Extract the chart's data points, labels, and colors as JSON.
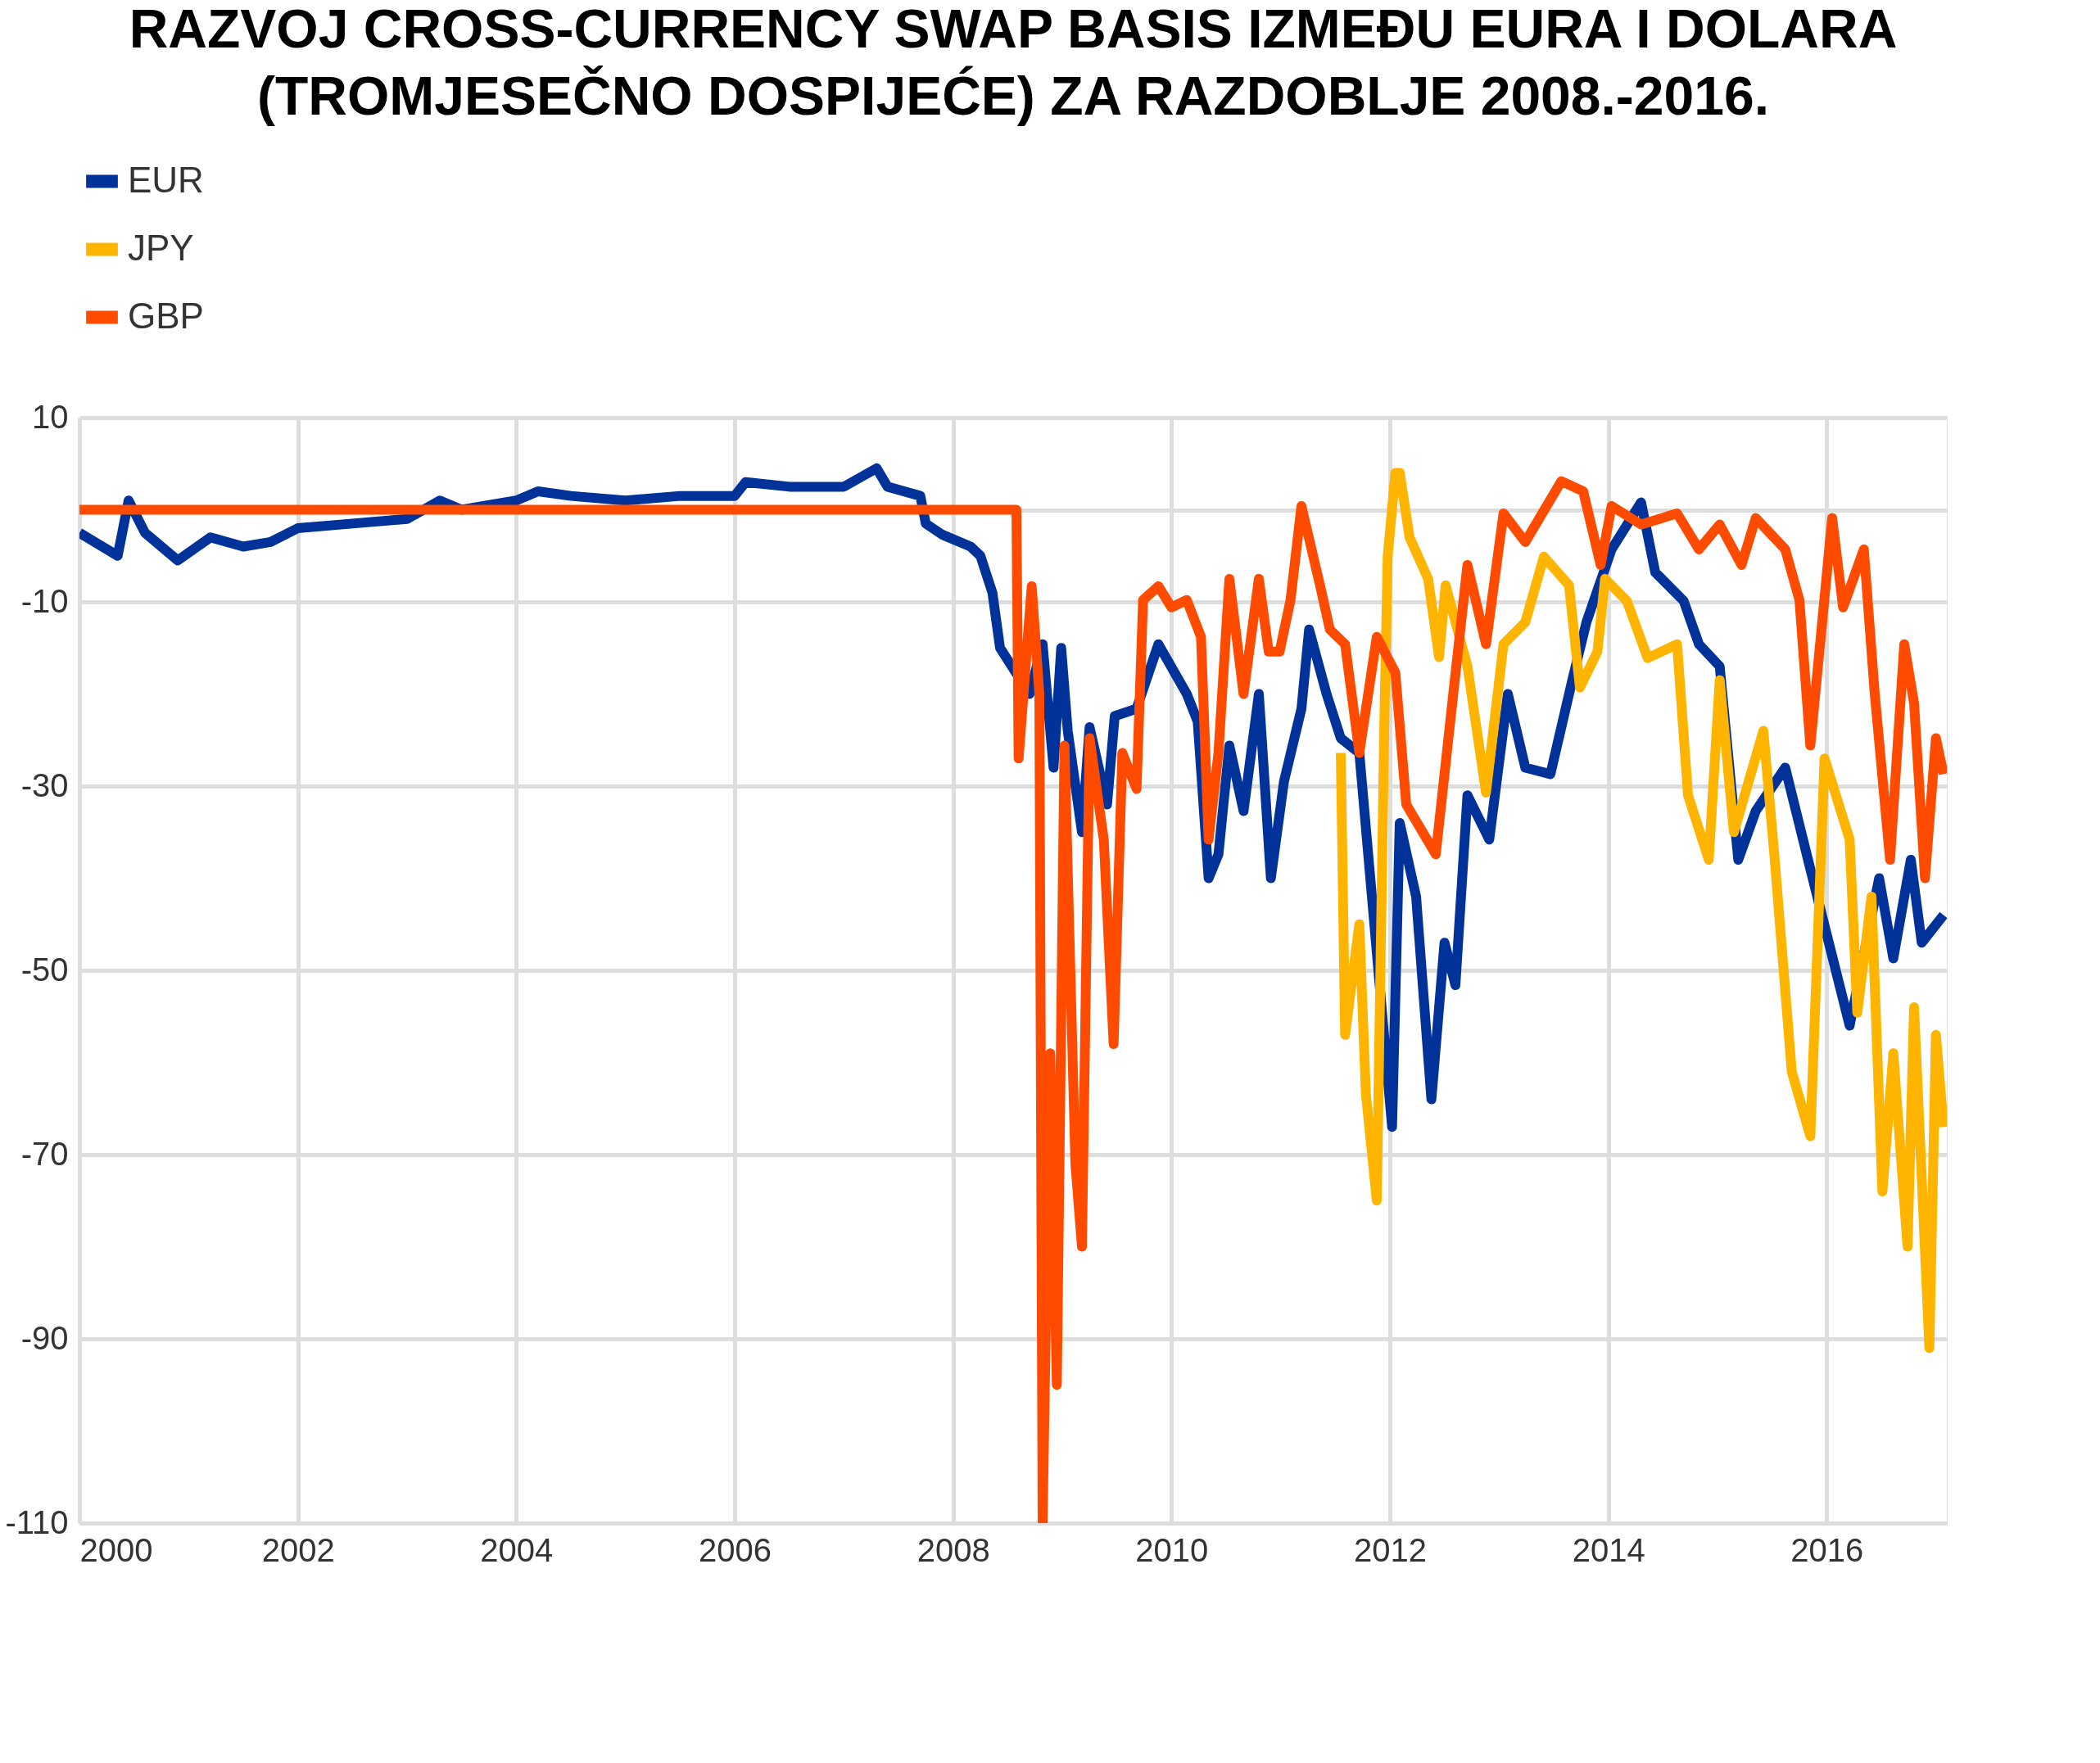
{
  "chart_data": {
    "type": "line",
    "title": "RAZVOJ CROSS-CURRENCY SWAP BASIS IZMEĐU EURA I DOLARA (TROMJESEČNO DOSPIJEĆE) ZA RAZDOBLJE 2008.-2016.",
    "xlim": [
      2000,
      2017.1
    ],
    "xticks": [
      2000,
      2002,
      2004,
      2006,
      2008,
      2010,
      2012,
      2014,
      2016
    ],
    "ylim": [
      -110,
      10
    ],
    "yticks": [
      10,
      {
        "value": 0,
        "label": null
      },
      -10,
      -30,
      -50,
      -70,
      -90,
      -110
    ],
    "grid": true,
    "legend": "top left",
    "line_style": "solid",
    "marker": "none",
    "series": [
      {
        "name": "EUR",
        "color": "#003299",
        "x": [
          2000,
          2000.35,
          2000.45,
          2000.6,
          2000.9,
          2001.2,
          2001.5,
          2001.75,
          2002.0,
          2002.5,
          2003.0,
          2003.3,
          2003.5,
          2004.0,
          2004.2,
          2004.5,
          2005.0,
          2005.5,
          2006.0,
          2006.1,
          2006.5,
          2007.0,
          2007.3,
          2007.4,
          2007.7,
          2007.75,
          2007.9,
          2008.16,
          2008.25,
          2008.36,
          2008.43,
          2008.7,
          2008.82,
          2008.92,
          2008.99,
          2009.05,
          2009.18,
          2009.25,
          2009.41,
          2009.48,
          2009.68,
          2009.88,
          2010.14,
          2010.24,
          2010.34,
          2010.43,
          2010.53,
          2010.66,
          2010.8,
          2010.91,
          2011.03,
          2011.19,
          2011.26,
          2011.42,
          2011.55,
          2011.72,
          2012.02,
          2012.09,
          2012.24,
          2012.38,
          2012.5,
          2012.6,
          2012.71,
          2012.91,
          2013.08,
          2013.24,
          2013.47,
          2013.67,
          2013.8,
          2014.03,
          2014.3,
          2014.43,
          2014.69,
          2014.83,
          2015.02,
          2015.19,
          2015.35,
          2015.62,
          2015.85,
          2016.21,
          2016.48,
          2016.61,
          2016.77,
          2016.87,
          2017.07
        ],
        "values": [
          -2.5,
          -5,
          1,
          -2.5,
          -5.5,
          -3,
          -4,
          -3.5,
          -2,
          -1.5,
          -1,
          1,
          0,
          1,
          2,
          1.5,
          1,
          1.5,
          1.5,
          3,
          2.5,
          2.5,
          4.5,
          2.5,
          1.5,
          -1.5,
          -2.7,
          -4,
          -5,
          -9,
          -15,
          -20,
          -14.6,
          -28,
          -15,
          -24,
          -35,
          -23.6,
          -32,
          -22.4,
          -21.6,
          -14.6,
          -20,
          -23,
          -40,
          -37.4,
          -25.6,
          -32.7,
          -20,
          -40,
          -29.5,
          -21.6,
          -13,
          -20,
          -24.8,
          -26.4,
          -67,
          -34,
          -42,
          -64,
          -47,
          -51.6,
          -31,
          -35.8,
          -20,
          -28,
          -28.7,
          -18.5,
          -12.2,
          -4.3,
          0.8,
          -6.8,
          -9.9,
          -14.6,
          -17,
          -38,
          -32.7,
          -28,
          -39,
          -56,
          -40,
          -48.7,
          -38,
          -47,
          -44
        ]
      },
      {
        "name": "JPY",
        "color": "#ffb400",
        "x": [
          2011.55,
          2011.59,
          2011.72,
          2011.78,
          2011.88,
          2011.95,
          2011.98,
          2012.05,
          2012.09,
          2012.18,
          2012.35,
          2012.45,
          2012.51,
          2012.71,
          2012.88,
          2013.04,
          2013.24,
          2013.41,
          2013.64,
          2013.74,
          2013.9,
          2013.97,
          2014.17,
          2014.36,
          2014.63,
          2014.73,
          2014.92,
          2015.02,
          2015.15,
          2015.42,
          2015.52,
          2015.68,
          2015.85,
          2015.98,
          2016.21,
          2016.28,
          2016.41,
          2016.51,
          2016.61,
          2016.74,
          2016.8,
          2016.94,
          2017.0,
          2017.07
        ],
        "values": [
          -26.4,
          -57,
          -45,
          -63.4,
          -75,
          -22.4,
          -5,
          4,
          4,
          -3,
          -7.5,
          -16,
          -8.2,
          -17,
          -30.7,
          -14.6,
          -12.2,
          -5.1,
          -8.2,
          -19.3,
          -15.4,
          -7.5,
          -9.9,
          -16.1,
          -14.6,
          -31,
          -38,
          -18.5,
          -35,
          -24,
          -37.4,
          -61,
          -68,
          -27,
          -35.8,
          -54.6,
          -42,
          -74,
          -59,
          -80,
          -54,
          -91,
          -57,
          -67
        ]
      },
      {
        "name": "GBP",
        "color": "#ff4b00",
        "x": [
          2000,
          2008.58,
          2008.6,
          2008.72,
          2008.79,
          2008.82,
          2008.89,
          2008.95,
          2009.02,
          2009.12,
          2009.18,
          2009.25,
          2009.38,
          2009.47,
          2009.55,
          2009.68,
          2009.74,
          2009.88,
          2010.0,
          2010.14,
          2010.27,
          2010.34,
          2010.43,
          2010.53,
          2010.66,
          2010.8,
          2010.89,
          2010.99,
          2011.09,
          2011.19,
          2011.36,
          2011.45,
          2011.59,
          2011.72,
          2011.88,
          2012.05,
          2012.15,
          2012.42,
          2012.58,
          2012.71,
          2012.88,
          2013.04,
          2013.24,
          2013.57,
          2013.77,
          2013.93,
          2014.03,
          2014.3,
          2014.63,
          2014.83,
          2015.02,
          2015.22,
          2015.35,
          2015.62,
          2015.75,
          2015.85,
          2016.05,
          2016.15,
          2016.34,
          2016.44,
          2016.58,
          2016.71,
          2016.8,
          2016.9,
          2017.0,
          2017.07
        ],
        "values": [
          0,
          0,
          -27,
          -8.3,
          -20,
          -110,
          -59,
          -95,
          -25.6,
          -71,
          -80,
          -24.8,
          -35.8,
          -58,
          -26.4,
          -30.3,
          -9.8,
          -8.3,
          -10.6,
          -9.8,
          -13.8,
          -35.8,
          -26.4,
          -7.5,
          -20,
          -7.5,
          -15.4,
          -15.4,
          -9.8,
          0.4,
          -8.2,
          -13,
          -14.6,
          -26.4,
          -13.8,
          -17.7,
          -32,
          -37.4,
          -20,
          -6,
          -14.6,
          -0.4,
          -3.5,
          3.1,
          2,
          -6,
          0.4,
          -1.6,
          -0.4,
          -4.3,
          -1.6,
          -6,
          -0.9,
          -4.3,
          -9.8,
          -25.6,
          -0.9,
          -10.6,
          -4.3,
          -20,
          -38,
          -14.6,
          -21,
          -40,
          -24.8,
          -28.7
        ]
      }
    ]
  }
}
